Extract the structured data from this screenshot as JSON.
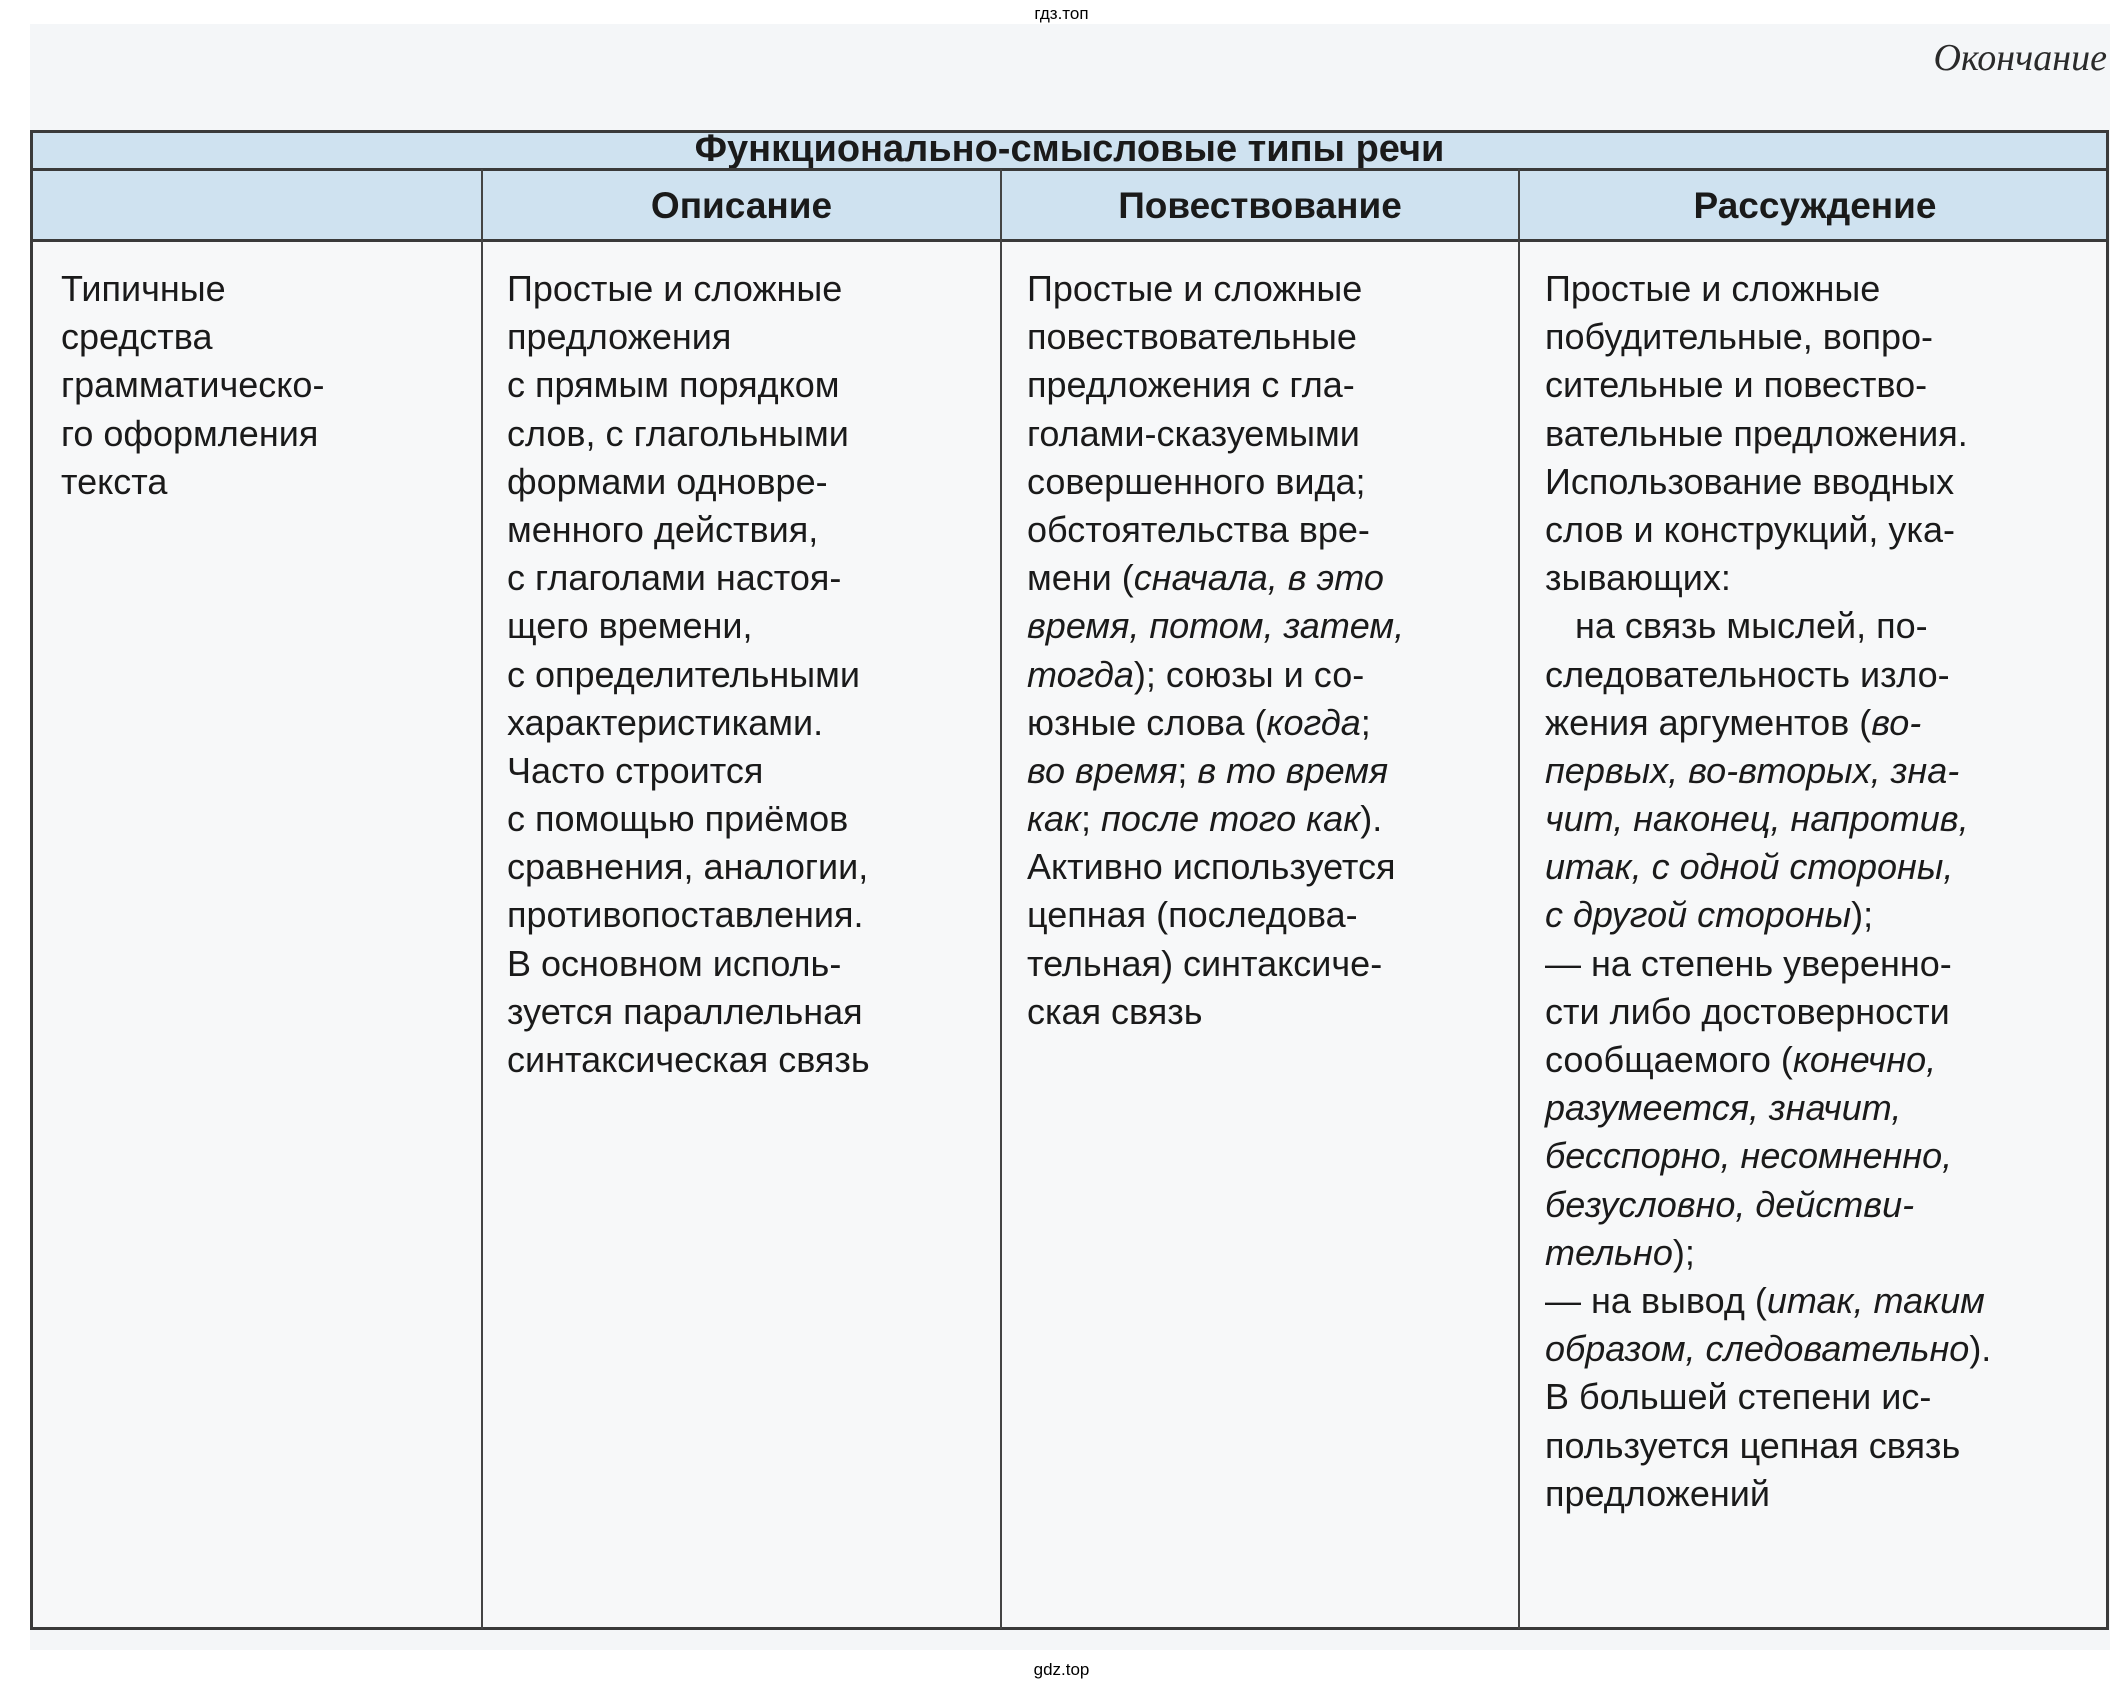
{
  "watermark_top": "гдз.топ",
  "watermark_bottom": "gdz.top",
  "continuation_label": "Окончание",
  "table": {
    "title": "Функционально-смысловые типы речи",
    "columns": [
      "",
      "Описание",
      "Повествование",
      "Рассуждение"
    ],
    "row": {
      "label": [
        [
          [
            "Типичные",
            false
          ]
        ],
        [
          [
            "средства",
            false
          ]
        ],
        [
          [
            "грамматическо-",
            false
          ]
        ],
        [
          [
            "го оформления",
            false
          ]
        ],
        [
          [
            "текста",
            false
          ]
        ]
      ],
      "description": [
        [
          [
            "Простые и сложные",
            false
          ]
        ],
        [
          [
            "предложения",
            false
          ]
        ],
        [
          [
            "с прямым порядком",
            false
          ]
        ],
        [
          [
            "слов, с глагольными",
            false
          ]
        ],
        [
          [
            "формами одновре-",
            false
          ]
        ],
        [
          [
            "менного действия,",
            false
          ]
        ],
        [
          [
            "с глаголами настоя-",
            false
          ]
        ],
        [
          [
            "щего времени,",
            false
          ]
        ],
        [
          [
            "с определительными",
            false
          ]
        ],
        [
          [
            "характеристиками.",
            false
          ]
        ],
        [
          [
            "Часто строится",
            false
          ]
        ],
        [
          [
            "с помощью приёмов",
            false
          ]
        ],
        [
          [
            "сравнения, аналогии,",
            false
          ]
        ],
        [
          [
            "противопоставления.",
            false
          ]
        ],
        [
          [
            "В основном исполь-",
            false
          ]
        ],
        [
          [
            "зуется параллельная",
            false
          ]
        ],
        [
          [
            "синтаксическая связь",
            false
          ]
        ]
      ],
      "narration": [
        [
          [
            "Простые и сложные",
            false
          ]
        ],
        [
          [
            "повествовательные",
            false
          ]
        ],
        [
          [
            "предложения с гла-",
            false
          ]
        ],
        [
          [
            "голами-сказуемыми",
            false
          ]
        ],
        [
          [
            "совершенного вида;",
            false
          ]
        ],
        [
          [
            "обстоятельства вре-",
            false
          ]
        ],
        [
          [
            "мени (",
            false
          ],
          [
            "сначала, в это",
            true
          ]
        ],
        [
          [
            "время, потом, затем,",
            true
          ]
        ],
        [
          [
            "тогда",
            true
          ],
          [
            "); союзы и со-",
            false
          ]
        ],
        [
          [
            "юзные слова (",
            false
          ],
          [
            "когда",
            true
          ],
          [
            ";",
            false
          ]
        ],
        [
          [
            "во время",
            true
          ],
          [
            "; ",
            false
          ],
          [
            "в то время",
            true
          ]
        ],
        [
          [
            "как",
            true
          ],
          [
            "; ",
            false
          ],
          [
            "после того как",
            true
          ],
          [
            ").",
            false
          ]
        ],
        [
          [
            "Активно используется",
            false
          ]
        ],
        [
          [
            "цепная (последова-",
            false
          ]
        ],
        [
          [
            "тельная) синтаксиче-",
            false
          ]
        ],
        [
          [
            "ская связь",
            false
          ]
        ]
      ],
      "reasoning": [
        [
          [
            "Простые и сложные",
            false
          ]
        ],
        [
          [
            "побудительные, вопро-",
            false
          ]
        ],
        [
          [
            "сительные и повество-",
            false
          ]
        ],
        [
          [
            "вательные предложения.",
            false
          ]
        ],
        [
          [
            "Использование вводных",
            false
          ]
        ],
        [
          [
            "слов и конструкций, ука-",
            false
          ]
        ],
        [
          [
            "зывающих:",
            false
          ]
        ],
        [
          [
            "   на связь мыслей, по-",
            false
          ]
        ],
        [
          [
            "следовательность изло-",
            false
          ]
        ],
        [
          [
            "жения аргументов (",
            false
          ],
          [
            "во-",
            true
          ]
        ],
        [
          [
            "первых, во-вторых, зна-",
            true
          ]
        ],
        [
          [
            "чит, наконец, напротив,",
            true
          ]
        ],
        [
          [
            "итак, с одной стороны,",
            true
          ]
        ],
        [
          [
            "с другой стороны",
            true
          ],
          [
            ");",
            false
          ]
        ],
        [
          [
            "— на степень уверенно-",
            false
          ]
        ],
        [
          [
            "сти либо достоверности",
            false
          ]
        ],
        [
          [
            "сообщаемого (",
            false
          ],
          [
            "конечно,",
            true
          ]
        ],
        [
          [
            "разумеется, значит,",
            true
          ]
        ],
        [
          [
            "бесспорно, несомненно,",
            true
          ]
        ],
        [
          [
            "безусловно, действи-",
            true
          ]
        ],
        [
          [
            "тельно",
            true
          ],
          [
            ");",
            false
          ]
        ],
        [
          [
            "— на вывод (",
            false
          ],
          [
            "итак, таким",
            true
          ]
        ],
        [
          [
            "образом, следовательно",
            true
          ],
          [
            ").",
            false
          ]
        ],
        [
          [
            "В большей степени ис-",
            false
          ]
        ],
        [
          [
            "пользуется цепная связь",
            false
          ]
        ],
        [
          [
            "предложений",
            false
          ]
        ]
      ]
    }
  },
  "colors": {
    "header_band": "#cfe2f0",
    "rule": "#3a3a3a"
  }
}
